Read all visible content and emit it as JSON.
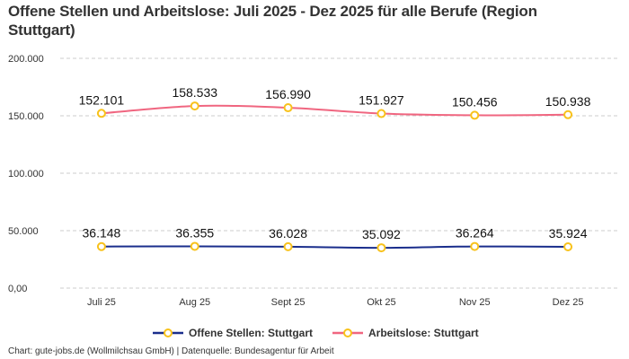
{
  "title": "Offene Stellen und Arbeitslose: Juli 2025 - Dez 2025 für alle Berufe (Region Stuttgart)",
  "footer": "Chart: gute-jobs.de (Wollmilchsau GmbH) | Datenquelle: Bundesagentur für Arbeit",
  "chart_data": {
    "type": "line",
    "categories": [
      "Juli 25",
      "Aug 25",
      "Sept 25",
      "Okt 25",
      "Nov 25",
      "Dez 25"
    ],
    "ylim": [
      0,
      200000
    ],
    "yticks": [
      0,
      50000,
      100000,
      150000,
      200000
    ],
    "ytick_labels": [
      "0,00",
      "50.000",
      "100.000",
      "150.000",
      "200.000"
    ],
    "grid": true,
    "legend_position": "bottom",
    "series": [
      {
        "name": "Offene Stellen: Stuttgart",
        "color": "#1a2e8c",
        "values": [
          36148,
          36355,
          36028,
          35092,
          36264,
          35924
        ],
        "labels": [
          "36.148",
          "36.355",
          "36.028",
          "35.092",
          "36.264",
          "35.924"
        ]
      },
      {
        "name": "Arbeitslose: Stuttgart",
        "color": "#f06680",
        "values": [
          152101,
          158533,
          156990,
          151927,
          150456,
          150938
        ],
        "labels": [
          "152.101",
          "158.533",
          "156.990",
          "151.927",
          "150.456",
          "150.938"
        ]
      }
    ],
    "marker_color": "#f8c21c"
  }
}
